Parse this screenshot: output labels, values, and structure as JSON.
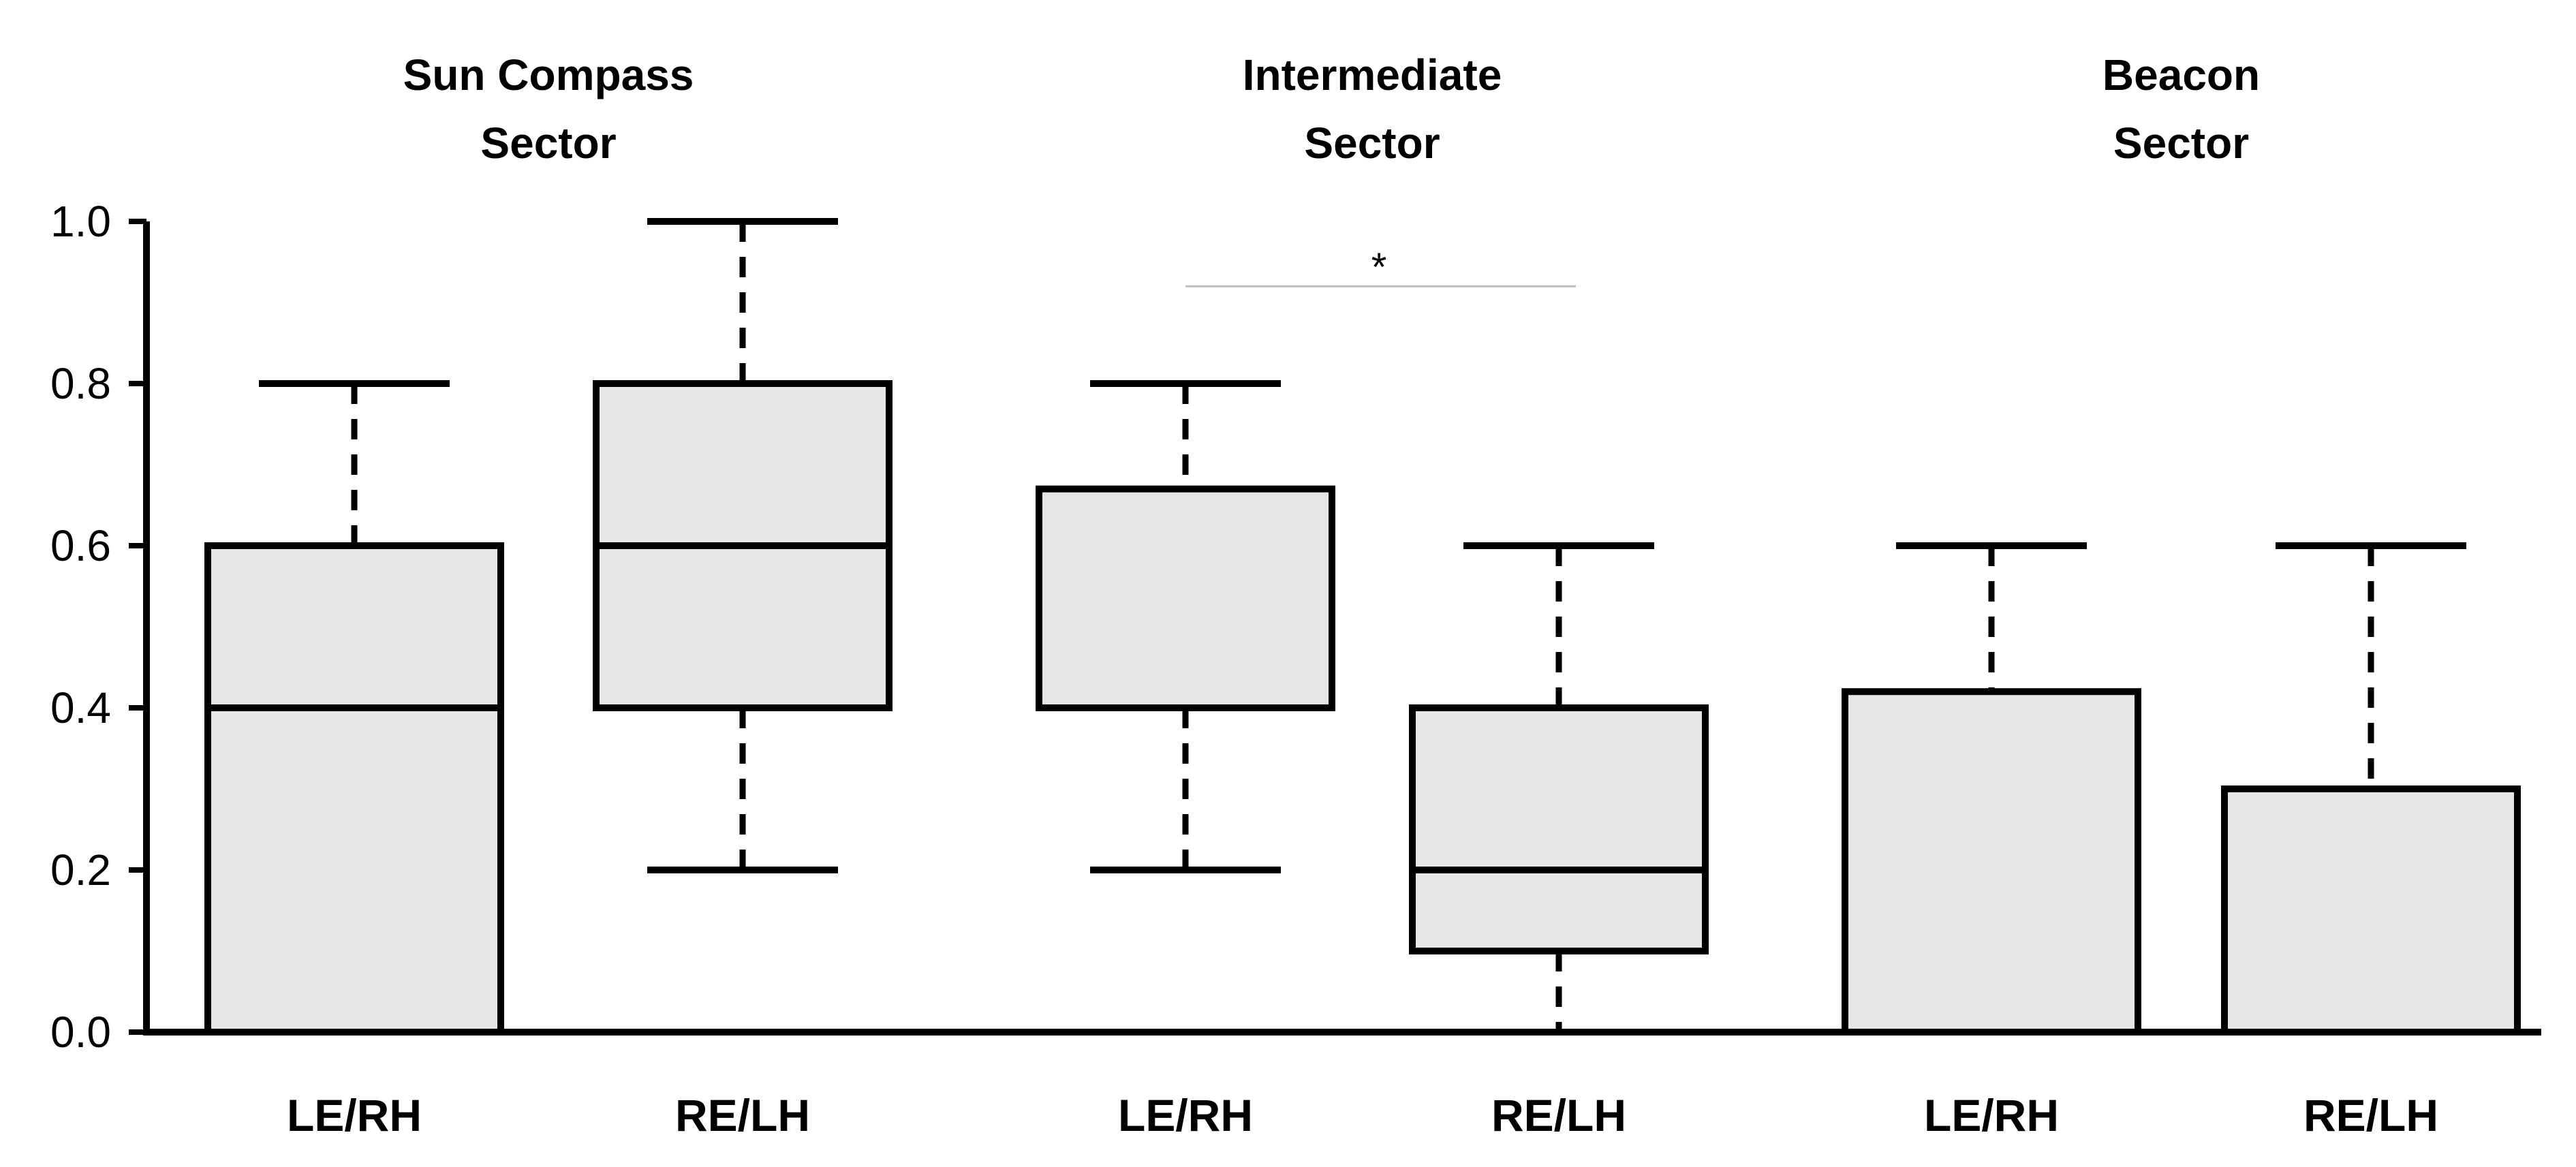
{
  "chart_data": {
    "type": "box",
    "ylim": [
      0,
      1.0
    ],
    "yticks": [
      "0.0",
      "0.2",
      "0.4",
      "0.6",
      "0.8",
      "1.0"
    ],
    "groups": [
      {
        "title_lines": [
          "Sun Compass",
          "Sector"
        ],
        "boxes": [
          {
            "label": "LE/RH",
            "min": 0.0,
            "q1": 0.0,
            "median": 0.4,
            "q3": 0.6,
            "max": 0.8
          },
          {
            "label": "RE/LH",
            "min": 0.2,
            "q1": 0.4,
            "median": 0.6,
            "q3": 0.8,
            "max": 1.0
          }
        ]
      },
      {
        "title_lines": [
          "Intermediate",
          "Sector"
        ],
        "boxes": [
          {
            "label": "LE/RH",
            "min": 0.2,
            "q1": 0.4,
            "median": 0.4,
            "q3": 0.67,
            "max": 0.8
          },
          {
            "label": "RE/LH",
            "min": 0.0,
            "q1": 0.1,
            "median": 0.2,
            "q3": 0.4,
            "max": 0.6
          }
        ]
      },
      {
        "title_lines": [
          "Beacon",
          "Sector"
        ],
        "boxes": [
          {
            "label": "LE/RH",
            "min": 0.0,
            "q1": 0.0,
            "median": 0.0,
            "q3": 0.42,
            "max": 0.6
          },
          {
            "label": "RE/LH",
            "min": 0.0,
            "q1": 0.0,
            "median": 0.0,
            "q3": 0.3,
            "max": 0.6
          }
        ]
      }
    ],
    "annotations": [
      {
        "text": "*",
        "group": 1,
        "between": [
          "LE/RH",
          "RE/LH"
        ],
        "y": 0.92
      }
    ],
    "colors": {
      "box_fill": "#e6e6e6",
      "stroke": "#000000",
      "sig_line": "#bfbfbf"
    }
  }
}
